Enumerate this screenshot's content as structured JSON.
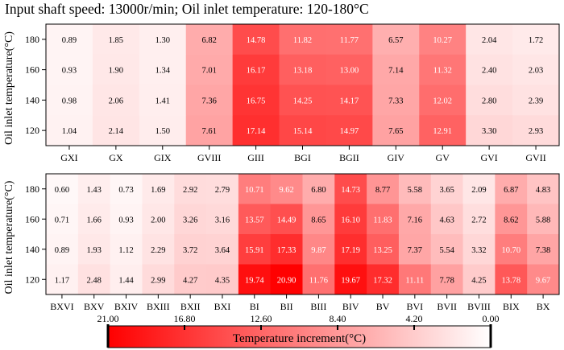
{
  "title": "Input shaft speed: 13000r/min; Oil inlet temperature: 120-180°C",
  "chart_data": [
    {
      "type": "heatmap",
      "ylabel": "Oil inlet temperature(°C)",
      "y_categories": [
        "180",
        "160",
        "140",
        "120"
      ],
      "x_categories": [
        "GXI",
        "GX",
        "GIX",
        "GVIII",
        "GIII",
        "BGI",
        "BGII",
        "GIV",
        "GV",
        "GVI",
        "GVII"
      ],
      "values": [
        [
          0.89,
          1.85,
          1.3,
          6.82,
          14.78,
          11.82,
          11.77,
          6.57,
          10.27,
          2.04,
          1.72
        ],
        [
          0.93,
          1.9,
          1.34,
          7.01,
          16.17,
          13.18,
          13.0,
          7.14,
          11.32,
          2.4,
          2.03
        ],
        [
          0.98,
          2.06,
          1.41,
          7.36,
          16.75,
          14.25,
          14.17,
          7.33,
          12.02,
          2.8,
          2.39
        ],
        [
          1.04,
          2.14,
          1.5,
          7.61,
          17.14,
          15.14,
          14.97,
          7.65,
          12.91,
          3.3,
          2.93
        ]
      ],
      "value_labels": [
        [
          "0.89",
          "1.85",
          "1.30",
          "6.82",
          "14.78",
          "11.82",
          "11.77",
          "6.57",
          "10.27",
          "2.04",
          "1.72"
        ],
        [
          "0.93",
          "1.90",
          "1.34",
          "7.01",
          "16.17",
          "13.18",
          "13.00",
          "7.14",
          "11.32",
          "2.40",
          "2.03"
        ],
        [
          "0.98",
          "2.06",
          "1.41",
          "7.36",
          "16.75",
          "14.25",
          "14.17",
          "7.33",
          "12.02",
          "2.80",
          "2.39"
        ],
        [
          "1.04",
          "2.14",
          "1.50",
          "7.61",
          "17.14",
          "15.14",
          "14.97",
          "7.65",
          "12.91",
          "3.30",
          "2.93"
        ]
      ]
    },
    {
      "type": "heatmap",
      "ylabel": "Oil inlet temperature(°C)",
      "y_categories": [
        "180",
        "160",
        "140",
        "120"
      ],
      "x_categories": [
        "BXVI",
        "BXV",
        "BXIV",
        "BXIII",
        "BXII",
        "BXI",
        "BI",
        "BII",
        "BIII",
        "BIV",
        "BV",
        "BVI",
        "BVII",
        "BVIII",
        "BIX",
        "BX"
      ],
      "values": [
        [
          0.6,
          1.43,
          0.73,
          1.69,
          2.92,
          2.79,
          10.71,
          9.62,
          6.8,
          14.73,
          8.77,
          5.58,
          3.65,
          2.09,
          6.87,
          4.83
        ],
        [
          0.71,
          1.66,
          0.93,
          2.0,
          3.26,
          3.16,
          13.57,
          14.49,
          8.65,
          16.1,
          11.83,
          7.16,
          4.63,
          2.72,
          8.62,
          5.88
        ],
        [
          0.89,
          1.93,
          1.12,
          2.29,
          3.72,
          3.64,
          15.91,
          17.33,
          9.87,
          17.19,
          13.25,
          7.37,
          5.54,
          3.32,
          10.7,
          7.38
        ],
        [
          1.17,
          2.48,
          1.44,
          2.99,
          4.27,
          4.35,
          19.74,
          20.9,
          11.76,
          19.67,
          17.32,
          11.11,
          7.78,
          4.25,
          13.78,
          9.67
        ]
      ],
      "value_labels": [
        [
          "0.60",
          "1.43",
          "0.73",
          "1.69",
          "2.92",
          "2.79",
          "10.71",
          "9.62",
          "6.80",
          "14.73",
          "8.77",
          "5.58",
          "3.65",
          "2.09",
          "6.87",
          "4.83"
        ],
        [
          "0.71",
          "1.66",
          "0.93",
          "2.00",
          "3.26",
          "3.16",
          "13.57",
          "14.49",
          "8.65",
          "16.10",
          "11.83",
          "7.16",
          "4.63",
          "2.72",
          "8.62",
          "5.88"
        ],
        [
          "0.89",
          "1.93",
          "1.12",
          "2.29",
          "3.72",
          "3.64",
          "15.91",
          "17.33",
          "9.87",
          "17.19",
          "13.25",
          "7.37",
          "5.54",
          "3.32",
          "10.70",
          "7.38"
        ],
        [
          "1.17",
          "2.48",
          "1.44",
          "2.99",
          "4.27",
          "4.35",
          "19.74",
          "20.90",
          "11.76",
          "19.67",
          "17.32",
          "11.11",
          "7.78",
          "4.25",
          "13.78",
          "9.67"
        ]
      ]
    }
  ],
  "colorbar": {
    "label": "Temperature increment(°C)",
    "range": [
      0,
      21
    ],
    "ticks": [
      "21.00",
      "16.80",
      "12.60",
      "8.40",
      "4.20",
      "0.00"
    ],
    "tick_values": [
      21.0,
      16.8,
      12.6,
      8.4,
      4.2,
      0.0
    ],
    "color_high": "#ff0000",
    "color_low": "#ffffff"
  }
}
